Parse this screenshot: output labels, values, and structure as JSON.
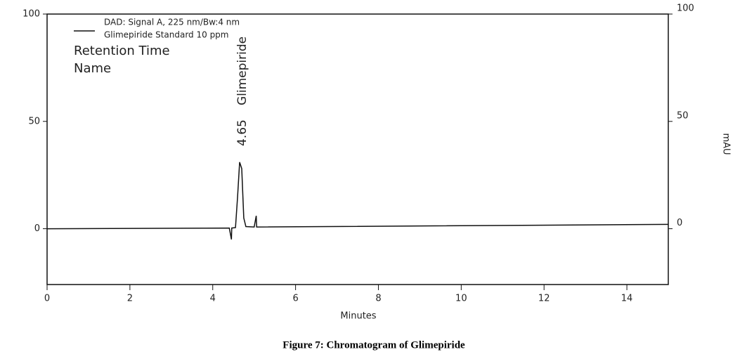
{
  "chart_data": {
    "type": "line",
    "x_label": "Minutes",
    "y2_label": "mAU",
    "caption": "Figure 7: Chromatogram of Glimepiride",
    "legend_note": "Glimepiride Standard 10 ppm",
    "annotations": [
      "Retention Time",
      "Name"
    ],
    "peak_labels": [
      {
        "retention_time": 4.65,
        "name": "Glimepiride"
      }
    ],
    "xlim": [
      0,
      15
    ],
    "xticks": [
      0,
      2,
      4,
      6,
      8,
      10,
      12,
      14
    ],
    "ylim": [
      -26,
      100
    ],
    "yticks": [
      0,
      50,
      100
    ],
    "y2lim": [
      -26,
      100
    ],
    "y2ticks": [
      0,
      50,
      100
    ],
    "series": [
      {
        "name": "DAD: Signal A, 225 nm/Bw:4 nm",
        "color": "#111111",
        "x": [
          0,
          4.4,
          4.45,
          4.46,
          4.55,
          4.6,
          4.65,
          4.7,
          4.75,
          4.8,
          5.0,
          5.05,
          5.06,
          15
        ],
        "values": [
          0,
          0.3,
          -5,
          0.3,
          0.5,
          15,
          31,
          28,
          5,
          1,
          0.8,
          6,
          0.8,
          2
        ]
      }
    ]
  }
}
